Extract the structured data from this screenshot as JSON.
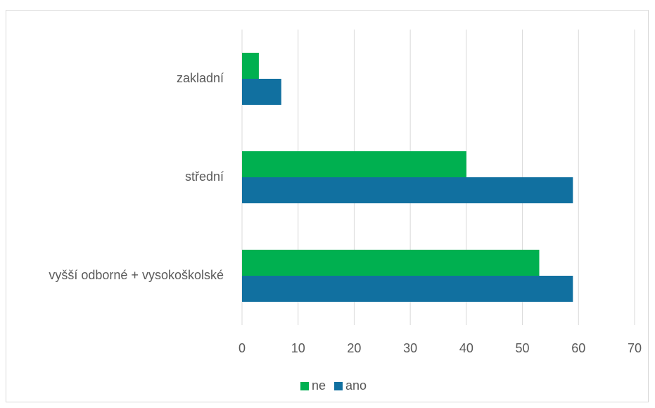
{
  "chart_data": {
    "type": "bar",
    "orientation": "horizontal",
    "categories": [
      "zakladní",
      "střední",
      "vyšší odborné + vysokoškolské"
    ],
    "series": [
      {
        "name": "ne",
        "color": "#00b050",
        "values": [
          3,
          40,
          53
        ]
      },
      {
        "name": "ano",
        "color": "#1170a0",
        "values": [
          7,
          59,
          59
        ]
      }
    ],
    "xlim": [
      0,
      70
    ],
    "xticks": [
      0,
      10,
      20,
      30,
      40,
      50,
      60,
      70
    ],
    "grid": true,
    "legend": "bottom"
  }
}
